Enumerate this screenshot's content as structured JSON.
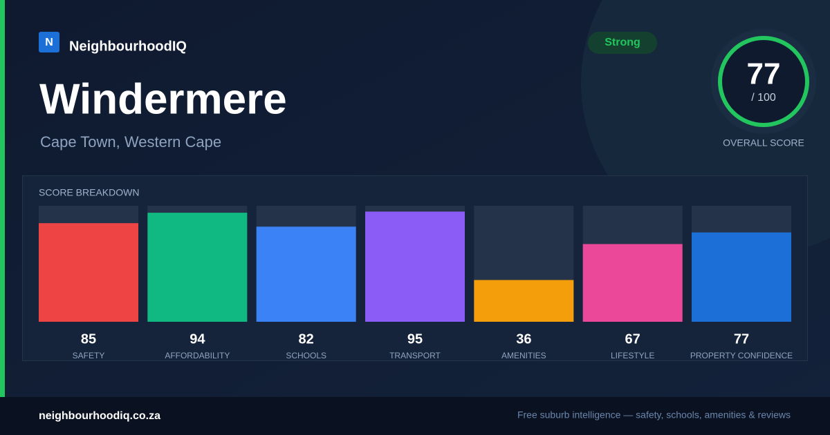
{
  "brand": {
    "logo_letter": "N",
    "name": "NeighbourhoodIQ"
  },
  "title": "Windermere",
  "location": "Cape Town, Western Cape",
  "badge": "Strong",
  "overall": {
    "score": "77",
    "out_of": "/ 100",
    "label": "OVERALL SCORE"
  },
  "chart_data": {
    "type": "bar",
    "title": "SCORE BREAKDOWN",
    "categories": [
      "SAFETY",
      "AFFORDABILITY",
      "SCHOOLS",
      "TRANSPORT",
      "AMENITIES",
      "LIFESTYLE",
      "PROPERTY CONFIDENCE"
    ],
    "values": [
      85,
      94,
      82,
      95,
      36,
      67,
      77
    ],
    "colors": [
      "#ef4444",
      "#10b981",
      "#3b82f6",
      "#8b5cf6",
      "#f59e0b",
      "#ec4899",
      "#1d6fd8"
    ],
    "ylim": [
      0,
      100
    ]
  },
  "footer": {
    "site": "neighbourhoodiq.co.za",
    "tagline": "Free suburb intelligence — safety, schools, amenities & reviews"
  }
}
